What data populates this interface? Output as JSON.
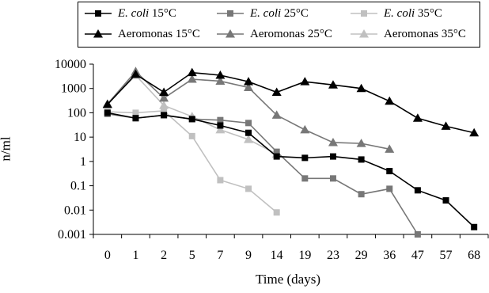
{
  "chart_data": {
    "type": "line",
    "xlabel": "Time (days)",
    "ylabel": "n/ml",
    "yscale": "log",
    "ylim": [
      0.001,
      10000
    ],
    "categories": [
      "0",
      "1",
      "2",
      "5",
      "7",
      "9",
      "14",
      "19",
      "23",
      "29",
      "36",
      "47",
      "57",
      "68"
    ],
    "ytick_labels": [
      "0.001",
      "0.01",
      "0.1",
      "1",
      "10",
      "100",
      "1000",
      "10000"
    ],
    "legend_position": "top",
    "series": [
      {
        "name_italic": "E. coli",
        "name_rest": " 15°C",
        "color": "#000000",
        "marker": "square",
        "values": [
          100,
          60,
          80,
          55,
          30,
          15,
          1.6,
          1.4,
          1.6,
          1.2,
          0.4,
          0.065,
          0.025,
          0.002
        ]
      },
      {
        "name_italic": "E. coli",
        "name_rest": " 25°C",
        "color": "#777777",
        "marker": "square",
        "values": [
          90,
          60,
          80,
          55,
          50,
          38,
          2.5,
          0.2,
          0.2,
          0.045,
          0.075,
          0.001,
          null,
          null
        ]
      },
      {
        "name_italic": "E. coli",
        "name_rest": " 35°C",
        "color": "#c0c0c0",
        "marker": "square",
        "values": [
          110,
          100,
          120,
          11,
          0.17,
          0.075,
          0.008,
          null,
          null,
          null,
          null,
          null,
          null,
          null
        ]
      },
      {
        "name_italic": "",
        "name_rest": "Aeromonas 15°C",
        "color": "#000000",
        "marker": "triangle",
        "values": [
          220,
          3800,
          700,
          4500,
          3500,
          1900,
          700,
          1900,
          1400,
          1000,
          300,
          60,
          28,
          15
        ]
      },
      {
        "name_italic": "",
        "name_rest": "Aeromonas 25°C",
        "color": "#777777",
        "marker": "triangle",
        "values": [
          230,
          5000,
          400,
          2400,
          2000,
          1100,
          80,
          20,
          6,
          5.5,
          3.2,
          null,
          null,
          null
        ]
      },
      {
        "name_italic": "",
        "name_rest": "Aeromonas 35°C",
        "color": "#c0c0c0",
        "marker": "triangle",
        "values": [
          230,
          3500,
          200,
          70,
          20,
          8,
          2,
          null,
          null,
          null,
          null,
          null,
          null,
          null
        ]
      }
    ]
  }
}
